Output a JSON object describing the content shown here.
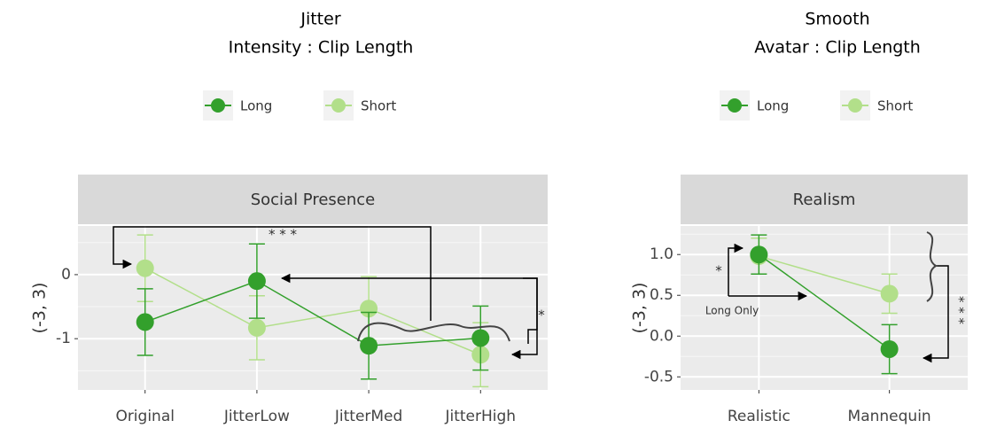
{
  "chart_data": [
    {
      "type": "line",
      "title": "Jitter",
      "subtitle": "Intensity : Clip Length",
      "facet": "Social Presence",
      "ylabel": "(-3, 3)",
      "categories": [
        "Original",
        "JitterLow",
        "JitterMed",
        "JitterHigh"
      ],
      "series": [
        {
          "name": "Long",
          "color": "#33a02c",
          "values": [
            -0.74,
            -0.1,
            -1.11,
            -0.99
          ],
          "errors": [
            0.52,
            0.58,
            0.52,
            0.5
          ]
        },
        {
          "name": "Short",
          "color": "#b2df8a",
          "values": [
            0.1,
            -0.83,
            -0.53,
            -1.25
          ],
          "errors": [
            0.52,
            0.5,
            0.5,
            0.5
          ]
        }
      ],
      "ylim": [
        -1.8,
        0.76
      ],
      "yticks": [
        0,
        -1
      ],
      "grid": true,
      "annotations": [
        "* * *",
        "*"
      ]
    },
    {
      "type": "line",
      "title": "Smooth",
      "subtitle": "Avatar : Clip Length",
      "facet": "Realism",
      "ylabel": "(-3, 3)",
      "categories": [
        "Realistic",
        "Mannequin"
      ],
      "series": [
        {
          "name": "Long",
          "color": "#33a02c",
          "values": [
            1.0,
            -0.16
          ],
          "errors": [
            0.24,
            0.3
          ]
        },
        {
          "name": "Short",
          "color": "#b2df8a",
          "values": [
            0.98,
            0.52
          ],
          "errors": [
            0.22,
            0.24
          ]
        }
      ],
      "ylim": [
        -0.66,
        1.35
      ],
      "yticks": [
        {
          "value": 1,
          "label": "1.0"
        },
        {
          "value": 0.5,
          "label": "0.5"
        },
        {
          "value": 0,
          "label": "0.0"
        },
        -0.5
      ],
      "grid": true,
      "annotations": [
        "*",
        "* * *",
        "Long Only"
      ]
    }
  ]
}
